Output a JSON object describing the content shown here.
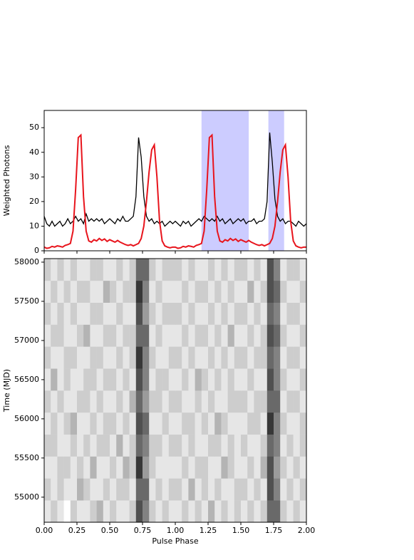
{
  "chart_data": [
    {
      "type": "line",
      "ylabel": "Weighted Photons",
      "xlim": [
        0,
        2
      ],
      "ylim": [
        0,
        57
      ],
      "xticks": [
        0,
        0.25,
        0.5,
        0.75,
        1,
        1.25,
        1.5,
        1.75,
        2
      ],
      "yticks": [
        0,
        10,
        20,
        30,
        40,
        50
      ],
      "spans": [
        [
          1.2,
          1.56
        ],
        [
          1.71,
          1.83
        ]
      ],
      "span_color": "#ccccff",
      "x": [
        0,
        0.02,
        0.04,
        0.06,
        0.08,
        0.1,
        0.12,
        0.14,
        0.16,
        0.18,
        0.2,
        0.22,
        0.24,
        0.26,
        0.28,
        0.3,
        0.32,
        0.34,
        0.36,
        0.38,
        0.4,
        0.42,
        0.44,
        0.46,
        0.48,
        0.5,
        0.52,
        0.54,
        0.56,
        0.58,
        0.6,
        0.62,
        0.64,
        0.66,
        0.68,
        0.7,
        0.72,
        0.74,
        0.76,
        0.78,
        0.8,
        0.82,
        0.84,
        0.86,
        0.88,
        0.9,
        0.92,
        0.94,
        0.96,
        0.98,
        1,
        1.02,
        1.04,
        1.06,
        1.08,
        1.1,
        1.12,
        1.14,
        1.16,
        1.18,
        1.2,
        1.22,
        1.24,
        1.26,
        1.28,
        1.3,
        1.32,
        1.34,
        1.36,
        1.38,
        1.4,
        1.42,
        1.44,
        1.46,
        1.48,
        1.5,
        1.52,
        1.54,
        1.56,
        1.58,
        1.6,
        1.62,
        1.64,
        1.66,
        1.68,
        1.7,
        1.72,
        1.74,
        1.76,
        1.78,
        1.8,
        1.82,
        1.84,
        1.86,
        1.88,
        1.9,
        1.92,
        1.94,
        1.96,
        1.98,
        2
      ],
      "series": [
        {
          "color": "#000000",
          "values": [
            14,
            11,
            10,
            12,
            10,
            11,
            12,
            10,
            11,
            13,
            11,
            12,
            14,
            12,
            13,
            11,
            15,
            12,
            13,
            12,
            13,
            12,
            13,
            11,
            12,
            13,
            12,
            11,
            13,
            12,
            14,
            12,
            12,
            13,
            14,
            22,
            46,
            38,
            22,
            14,
            12,
            13,
            11,
            12,
            11,
            12,
            10,
            11,
            12,
            11,
            12,
            11,
            10,
            12,
            11,
            12,
            10,
            11,
            12,
            13,
            12,
            14,
            13,
            12,
            13,
            12,
            14,
            12,
            13,
            11,
            12,
            13,
            11,
            12,
            13,
            12,
            13,
            11,
            12,
            12,
            13,
            11,
            12,
            12,
            13,
            20,
            48,
            36,
            21,
            14,
            12,
            13,
            11,
            12,
            12,
            11,
            10,
            12,
            11,
            10,
            11
          ]
        },
        {
          "color": "#e8141c",
          "values": [
            1.5,
            1,
            1.2,
            1.8,
            1.5,
            2,
            1.8,
            1.5,
            2.2,
            2.5,
            3,
            8,
            25,
            46,
            47,
            22,
            8,
            4,
            3.5,
            4.5,
            4,
            5,
            4.2,
            4.8,
            3.8,
            4.5,
            4,
            3.5,
            4.2,
            3.5,
            3,
            2.5,
            2.2,
            2.5,
            2,
            2.5,
            3,
            5,
            10,
            20,
            32,
            41,
            43,
            30,
            12,
            4,
            2,
            1.5,
            1.2,
            1.5,
            1.5,
            1,
            1.2,
            1.8,
            1.5,
            2,
            1.8,
            1.5,
            2.2,
            2.5,
            3,
            8,
            25,
            46,
            47,
            22,
            8,
            4,
            3.5,
            4.5,
            4,
            5,
            4.2,
            4.8,
            3.8,
            4.5,
            4,
            3.5,
            4.2,
            3.5,
            3,
            2.5,
            2.2,
            2.5,
            2,
            2.5,
            3,
            5,
            10,
            20,
            32,
            41,
            43,
            30,
            12,
            4,
            2,
            1.5,
            1.2,
            1.5,
            1.5
          ]
        }
      ]
    },
    {
      "type": "heatmap",
      "xlabel": "Pulse Phase",
      "ylabel": "Time (MJD)",
      "xlim": [
        0,
        2
      ],
      "ylim": [
        54680,
        58045
      ],
      "xticks": [
        {
          "value": 0,
          "label": "0.00"
        },
        {
          "value": 0.25,
          "label": "0.25"
        },
        {
          "value": 0.5,
          "label": "0.50"
        },
        {
          "value": 0.75,
          "label": "0.75"
        },
        {
          "value": 1,
          "label": "1.00"
        },
        {
          "value": 1.25,
          "label": "1.25"
        },
        {
          "value": 1.5,
          "label": "1.50"
        },
        {
          "value": 1.75,
          "label": "1.75"
        },
        {
          "value": 2,
          "label": "2.00"
        }
      ],
      "yticks": [
        55000,
        55500,
        56000,
        56500,
        57000,
        57500,
        58000
      ],
      "values": [
        [
          1,
          2,
          1,
          0,
          2,
          1,
          1,
          2,
          3,
          1,
          2,
          1,
          1,
          2,
          7,
          5,
          2,
          1,
          2,
          1,
          1,
          2,
          1,
          2,
          1,
          3,
          1,
          2,
          1,
          2,
          1,
          2,
          1,
          2,
          6,
          6,
          2,
          1,
          2,
          1
        ],
        [
          2,
          1,
          2,
          1,
          1,
          3,
          2,
          1,
          1,
          2,
          1,
          2,
          2,
          1,
          6,
          6,
          1,
          2,
          1,
          2,
          2,
          1,
          3,
          1,
          2,
          1,
          2,
          1,
          1,
          2,
          2,
          1,
          2,
          1,
          7,
          5,
          1,
          2,
          1,
          2
        ],
        [
          1,
          1,
          2,
          2,
          1,
          2,
          1,
          3,
          1,
          1,
          2,
          1,
          3,
          2,
          8,
          4,
          2,
          1,
          1,
          1,
          1,
          2,
          1,
          2,
          2,
          1,
          1,
          3,
          2,
          1,
          1,
          2,
          1,
          3,
          7,
          4,
          2,
          1,
          2,
          1
        ],
        [
          2,
          2,
          1,
          1,
          2,
          1,
          2,
          1,
          2,
          2,
          1,
          3,
          1,
          2,
          6,
          5,
          2,
          2,
          1,
          2,
          2,
          1,
          2,
          1,
          1,
          2,
          2,
          1,
          2,
          1,
          2,
          1,
          1,
          2,
          6,
          5,
          1,
          2,
          1,
          2
        ],
        [
          1,
          2,
          1,
          2,
          3,
          1,
          1,
          2,
          1,
          2,
          2,
          1,
          2,
          1,
          7,
          6,
          1,
          1,
          2,
          1,
          1,
          2,
          2,
          1,
          2,
          1,
          3,
          2,
          1,
          1,
          1,
          2,
          2,
          1,
          8,
          5,
          2,
          1,
          1,
          2
        ],
        [
          2,
          1,
          2,
          1,
          1,
          2,
          2,
          1,
          2,
          1,
          1,
          2,
          1,
          3,
          6,
          4,
          2,
          2,
          1,
          2,
          2,
          1,
          1,
          2,
          1,
          2,
          1,
          1,
          2,
          2,
          2,
          1,
          2,
          2,
          6,
          6,
          1,
          2,
          2,
          1
        ],
        [
          1,
          3,
          1,
          2,
          1,
          1,
          2,
          2,
          1,
          2,
          2,
          1,
          2,
          1,
          7,
          5,
          1,
          2,
          2,
          1,
          1,
          2,
          1,
          3,
          2,
          1,
          2,
          1,
          2,
          1,
          1,
          2,
          1,
          1,
          7,
          5,
          2,
          1,
          1,
          2
        ],
        [
          2,
          1,
          1,
          2,
          2,
          1,
          1,
          2,
          2,
          1,
          1,
          2,
          1,
          2,
          8,
          5,
          2,
          1,
          1,
          2,
          2,
          1,
          2,
          1,
          1,
          2,
          1,
          2,
          1,
          2,
          2,
          1,
          2,
          2,
          6,
          5,
          1,
          2,
          2,
          1
        ],
        [
          1,
          2,
          2,
          1,
          1,
          2,
          3,
          1,
          1,
          2,
          2,
          1,
          2,
          2,
          6,
          6,
          1,
          2,
          1,
          1,
          1,
          2,
          1,
          2,
          2,
          1,
          2,
          1,
          3,
          1,
          1,
          2,
          1,
          2,
          7,
          6,
          2,
          1,
          1,
          2
        ],
        [
          2,
          1,
          2,
          1,
          2,
          1,
          1,
          2,
          2,
          1,
          1,
          2,
          1,
          1,
          7,
          4,
          2,
          1,
          2,
          2,
          2,
          1,
          2,
          1,
          1,
          2,
          1,
          2,
          1,
          2,
          2,
          1,
          2,
          1,
          6,
          5,
          1,
          2,
          2,
          1
        ],
        [
          1,
          2,
          1,
          2,
          1,
          2,
          2,
          1,
          1,
          3,
          2,
          1,
          2,
          2,
          8,
          5,
          1,
          2,
          1,
          1,
          1,
          2,
          1,
          2,
          2,
          1,
          2,
          1,
          2,
          1,
          1,
          3,
          1,
          2,
          7,
          6,
          2,
          1,
          1,
          2
        ],
        [
          2,
          1,
          2,
          1,
          2,
          1,
          1,
          2,
          2,
          1,
          1,
          2,
          1,
          2,
          6,
          6,
          2,
          1,
          2,
          2,
          2,
          1,
          2,
          1,
          1,
          2,
          1,
          2,
          1,
          2,
          2,
          1,
          2,
          1,
          7,
          5,
          1,
          2,
          2,
          1
        ]
      ]
    }
  ]
}
